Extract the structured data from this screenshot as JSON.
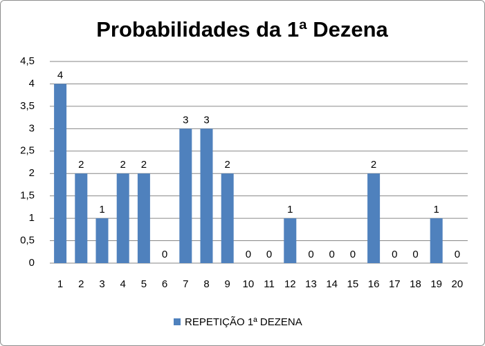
{
  "chart_data": {
    "type": "bar",
    "title": "Probabilidades da 1ª Dezena",
    "categories": [
      "1",
      "2",
      "3",
      "4",
      "5",
      "6",
      "7",
      "8",
      "9",
      "10",
      "11",
      "12",
      "13",
      "14",
      "15",
      "16",
      "17",
      "18",
      "19",
      "20"
    ],
    "series": [
      {
        "name": "REPETIÇÃO 1ª DEZENA",
        "color": "#4f81bd",
        "values": [
          4,
          2,
          1,
          2,
          2,
          0,
          3,
          3,
          2,
          0,
          0,
          1,
          0,
          0,
          0,
          2,
          0,
          0,
          1,
          0
        ]
      }
    ],
    "ylim": [
      0,
      4.5
    ],
    "yticks": [
      0,
      {
        "value": 0.5,
        "label": "0,5"
      },
      1,
      {
        "value": 1.5,
        "label": "1,5"
      },
      2,
      {
        "value": 2.5,
        "label": "2,5"
      },
      3,
      {
        "value": 3.5,
        "label": "3,5"
      },
      4,
      {
        "value": 4.5,
        "label": "4,5"
      }
    ],
    "grid": true
  }
}
